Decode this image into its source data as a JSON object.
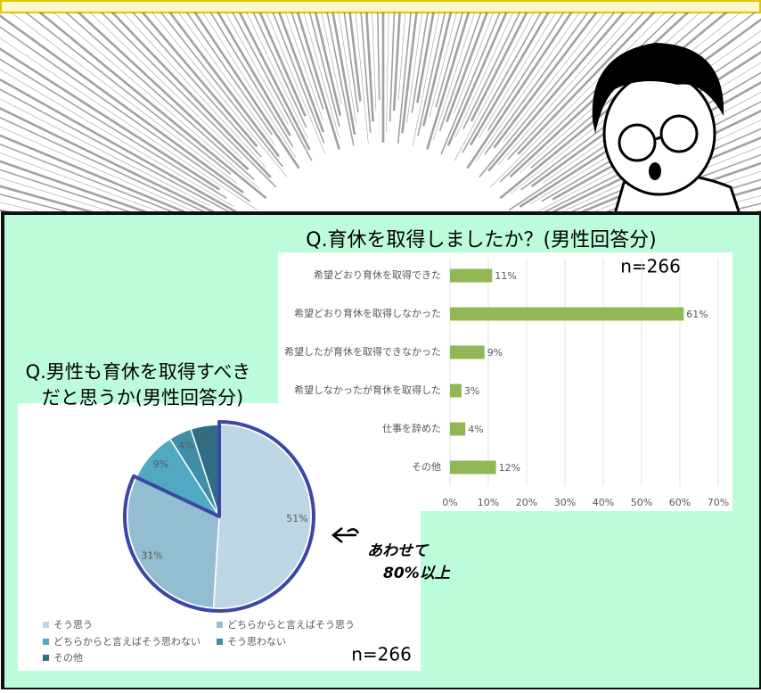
{
  "chart_data": [
    {
      "type": "bar",
      "orientation": "horizontal",
      "title": "Q.育休を取得しましたか？(男性回答分)",
      "note": "n=266",
      "categories": [
        "希望どおり育休を取得できた",
        "希望どおり育休を取得しなかった",
        "希望したが育休を取得できなかった",
        "希望しなかったが育休を取得した",
        "仕事を辞めた",
        "その他"
      ],
      "values": [
        11,
        61,
        9,
        3,
        4,
        12
      ],
      "value_labels": [
        "11%",
        "61%",
        "9%",
        "3%",
        "4%",
        "12%"
      ],
      "color": "#92b755",
      "xlim": [
        0,
        70
      ],
      "xticks": [
        {
          "value": 0,
          "label": "0%"
        },
        {
          "value": 10,
          "label": "10%"
        },
        {
          "value": 20,
          "label": "20%"
        },
        {
          "value": 30,
          "label": "30%"
        },
        {
          "value": 40,
          "label": "40%"
        },
        {
          "value": 50,
          "label": "50%"
        },
        {
          "value": 60,
          "label": "60%"
        },
        {
          "value": 70,
          "label": "70%"
        }
      ],
      "grid": true
    },
    {
      "type": "pie",
      "title": [
        "Q.男性も育休を取得すべき",
        "だと思うか(男性回答分)"
      ],
      "note": "n=266",
      "categories": [
        "そう思う",
        "どちらからと言えばそう思う",
        "どちらからと言えばそう思わない",
        "そう思わない",
        "その他"
      ],
      "values": [
        51,
        31,
        9,
        4,
        5
      ],
      "value_labels": [
        "51%",
        "31%",
        "9%",
        "4%",
        "5%"
      ],
      "colors": [
        "#bdd7e4",
        "#93bdd1",
        "#4fa9c1",
        "#3f8fa7",
        "#2f6f86"
      ],
      "highlight": [
        0,
        1
      ],
      "highlight_color": "#3b47a8",
      "annotation": [
        "あわせて",
        "80%以上"
      ]
    }
  ]
}
